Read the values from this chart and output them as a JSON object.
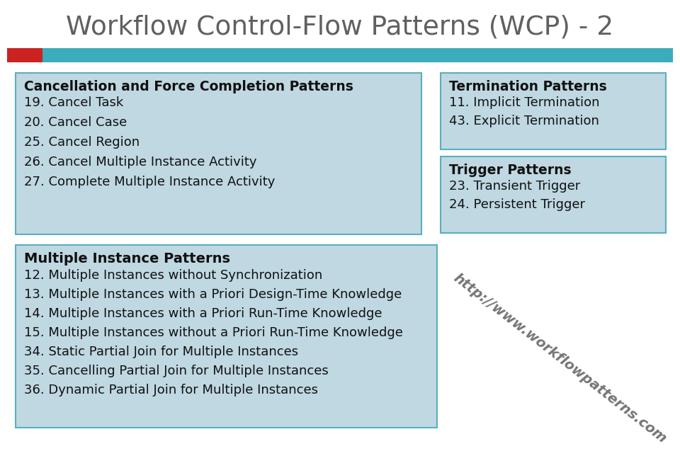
{
  "title": "Workflow Control-Flow Patterns (WCP) - 2",
  "title_color": "#606060",
  "bg_color": "#ffffff",
  "bar_red_color": "#cc2222",
  "bar_teal_color": "#3aacbc",
  "box_fill": "#bfd8e2",
  "box_edge": "#5aafbf",
  "box1_title": "Cancellation and Force Completion Patterns",
  "box1_items": [
    "19. Cancel Task",
    "20. Cancel Case",
    "25. Cancel Region",
    "26. Cancel Multiple Instance Activity",
    "27. Complete Multiple Instance Activity"
  ],
  "box2_title": "Termination Patterns",
  "box2_items": [
    "11. Implicit Termination",
    "43. Explicit Termination"
  ],
  "box3_title": "Trigger Patterns",
  "box3_items": [
    "23. Transient Trigger",
    "24. Persistent Trigger"
  ],
  "box4_title": "Multiple Instance Patterns",
  "box4_items": [
    "12. Multiple Instances without Synchronization",
    "13. Multiple Instances with a Priori Design-Time Knowledge",
    "14. Multiple Instances with a Priori Run-Time Knowledge",
    "15. Multiple Instances without a Priori Run-Time Knowledge",
    "34. Static Partial Join for Multiple Instances",
    "35. Cancelling Partial Join for Multiple Instances",
    "36. Dynamic Partial Join for Multiple Instances"
  ],
  "watermark": "http://www.workflowpatterns.com"
}
